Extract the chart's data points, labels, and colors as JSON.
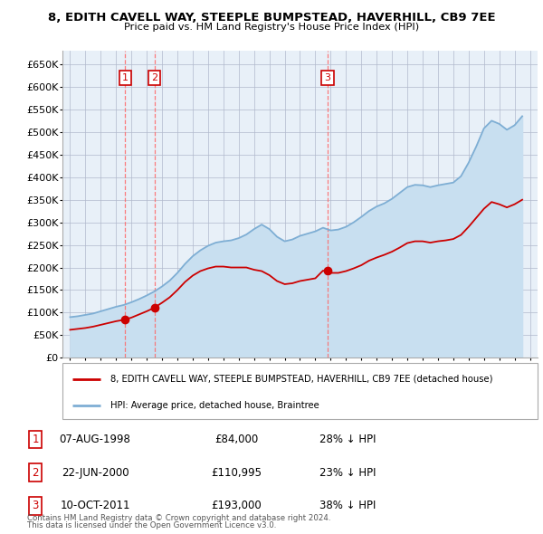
{
  "title": "8, EDITH CAVELL WAY, STEEPLE BUMPSTEAD, HAVERHILL, CB9 7EE",
  "subtitle": "Price paid vs. HM Land Registry's House Price Index (HPI)",
  "legend_line1": "8, EDITH CAVELL WAY, STEEPLE BUMPSTEAD, HAVERHILL, CB9 7EE (detached house)",
  "legend_line2": "HPI: Average price, detached house, Braintree",
  "footer1": "Contains HM Land Registry data © Crown copyright and database right 2024.",
  "footer2": "This data is licensed under the Open Government Licence v3.0.",
  "transactions": [
    {
      "num": 1,
      "date": "07-AUG-1998",
      "price": 84000,
      "pct": "28% ↓ HPI",
      "year": 1998.6
    },
    {
      "num": 2,
      "date": "22-JUN-2000",
      "price": 110995,
      "pct": "23% ↓ HPI",
      "year": 2000.5
    },
    {
      "num": 3,
      "date": "10-OCT-2011",
      "price": 193000,
      "pct": "38% ↓ HPI",
      "year": 2011.8
    }
  ],
  "hpi_color": "#7eaed4",
  "hpi_fill_color": "#c8dff0",
  "price_color": "#cc0000",
  "vline_color": "#ff6666",
  "box_edge_color": "#cc0000",
  "background_color": "#e8f0f8",
  "grid_color": "#b0b8cc",
  "ylim": [
    0,
    680000
  ],
  "yticks": [
    0,
    50000,
    100000,
    150000,
    200000,
    250000,
    300000,
    350000,
    400000,
    450000,
    500000,
    550000,
    600000,
    650000
  ],
  "xlim_start": 1994.5,
  "xlim_end": 2025.5,
  "hpi_years": [
    1995.0,
    1995.5,
    1996.0,
    1996.5,
    1997.0,
    1997.5,
    1998.0,
    1998.5,
    1999.0,
    1999.5,
    2000.0,
    2000.5,
    2001.0,
    2001.5,
    2002.0,
    2002.5,
    2003.0,
    2003.5,
    2004.0,
    2004.5,
    2005.0,
    2005.5,
    2006.0,
    2006.5,
    2007.0,
    2007.5,
    2008.0,
    2008.5,
    2009.0,
    2009.5,
    2010.0,
    2010.5,
    2011.0,
    2011.5,
    2012.0,
    2012.5,
    2013.0,
    2013.5,
    2014.0,
    2014.5,
    2015.0,
    2015.5,
    2016.0,
    2016.5,
    2017.0,
    2017.5,
    2018.0,
    2018.5,
    2019.0,
    2019.5,
    2020.0,
    2020.5,
    2021.0,
    2021.5,
    2022.0,
    2022.5,
    2023.0,
    2023.5,
    2024.0,
    2024.5
  ],
  "hpi_values": [
    90000,
    92000,
    95000,
    98000,
    103000,
    108000,
    113000,
    117000,
    123000,
    130000,
    138000,
    147000,
    158000,
    171000,
    188000,
    208000,
    225000,
    238000,
    248000,
    255000,
    258000,
    260000,
    265000,
    273000,
    285000,
    295000,
    285000,
    268000,
    258000,
    262000,
    270000,
    275000,
    280000,
    288000,
    282000,
    284000,
    290000,
    300000,
    312000,
    325000,
    335000,
    342000,
    352000,
    365000,
    378000,
    383000,
    382000,
    378000,
    382000,
    385000,
    388000,
    402000,
    432000,
    468000,
    508000,
    525000,
    518000,
    505000,
    515000,
    535000
  ],
  "red_values": [
    62000,
    64000,
    66000,
    69000,
    73000,
    77000,
    81000,
    84000,
    89000,
    96000,
    103000,
    110995,
    122000,
    134000,
    150000,
    168000,
    182000,
    192000,
    198000,
    202000,
    202000,
    200000,
    200000,
    200000,
    195000,
    192000,
    183000,
    170000,
    163000,
    165000,
    170000,
    173000,
    176000,
    193000,
    188000,
    188000,
    192000,
    198000,
    205000,
    215000,
    222000,
    228000,
    235000,
    244000,
    254000,
    258000,
    258000,
    255000,
    258000,
    260000,
    263000,
    272000,
    290000,
    310000,
    330000,
    345000,
    340000,
    333000,
    340000,
    350000
  ]
}
